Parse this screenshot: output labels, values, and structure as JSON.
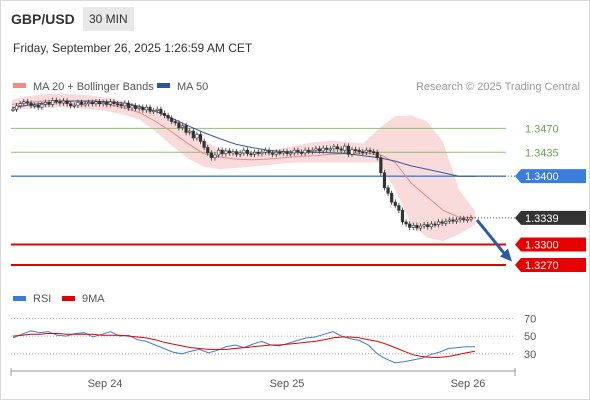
{
  "header": {
    "pair": "GBP/USD",
    "timeframe": "30 MIN",
    "date": "Friday, September 26, 2025 1:26:59 AM CET"
  },
  "colors": {
    "bollinger": "#f2a1a1",
    "ma20": "#e88a8a",
    "ma50": "#3a5a9a",
    "resistance": "#8dc26e",
    "pivot": "#3b7ddd",
    "support": "#e60000",
    "current": "#333333",
    "arrow": "#2b5aa6",
    "rsi": "#3b7ddd",
    "rsi_ma": "#e60000"
  },
  "chart_data": [
    {
      "type": "line",
      "title": "",
      "legend": {
        "placement": "top-left",
        "items": [
          {
            "label": "MA 20 + Bollinger Bands",
            "color": "#f28b82"
          },
          {
            "label": "MA 50",
            "color": "#2f5597"
          }
        ]
      },
      "credit": "Research © 2025 Trading Central",
      "x_labels": [
        "Sep 24",
        "Sep 25",
        "Sep 26"
      ],
      "y_range": [
        1.3248,
        1.3532
      ],
      "series": [
        {
          "name": "MA 20 + Bollinger Bands",
          "style": "line",
          "values": [
            1.3505,
            1.3508,
            1.351,
            1.3511,
            1.351,
            1.3508,
            1.3505,
            1.35,
            1.3493,
            1.348,
            1.3465,
            1.3448,
            1.3433,
            1.3428,
            1.3425,
            1.3424,
            1.3425,
            1.3427,
            1.3429,
            1.343,
            1.3432,
            1.3433,
            1.3433,
            1.3432,
            1.342,
            1.339,
            1.337,
            1.335,
            1.334,
            1.3339
          ]
        },
        {
          "name": "MA 50",
          "style": "line",
          "values": [
            1.35,
            1.3504,
            1.3507,
            1.3509,
            1.351,
            1.351,
            1.3509,
            1.3507,
            1.3502,
            1.3495,
            1.3485,
            1.3474,
            1.3464,
            1.3455,
            1.3447,
            1.3442,
            1.3438,
            1.3436,
            1.3435,
            1.3435,
            1.3434,
            1.3433,
            1.343,
            1.3427,
            1.3422,
            1.3415,
            1.341,
            1.3405,
            1.34,
            1.34
          ]
        },
        {
          "name": "Upper Bollinger",
          "style": "band",
          "values": [
            1.3512,
            1.3517,
            1.352,
            1.3521,
            1.352,
            1.3518,
            1.3515,
            1.351,
            1.3503,
            1.3495,
            1.3485,
            1.347,
            1.3452,
            1.344,
            1.3436,
            1.3436,
            1.3438,
            1.3441,
            1.3446,
            1.345,
            1.3452,
            1.345,
            1.3448,
            1.347,
            1.3488,
            1.3489,
            1.348,
            1.345,
            1.338,
            1.3349
          ]
        },
        {
          "name": "Lower Bollinger",
          "style": "band",
          "values": [
            1.3496,
            1.3499,
            1.35,
            1.3501,
            1.35,
            1.3498,
            1.3495,
            1.349,
            1.3483,
            1.3465,
            1.3445,
            1.3426,
            1.3414,
            1.341,
            1.3412,
            1.3414,
            1.3416,
            1.3419,
            1.342,
            1.342,
            1.342,
            1.342,
            1.342,
            1.342,
            1.338,
            1.333,
            1.331,
            1.3305,
            1.3315,
            1.3329
          ]
        }
      ],
      "price": {
        "x_start": 1,
        "values": [
          1.3498,
          1.3503,
          1.3506,
          1.3509,
          1.3507,
          1.3503,
          1.3504,
          1.3501,
          1.3505,
          1.3508,
          1.3505,
          1.3511,
          1.3509,
          1.3507,
          1.351,
          1.3506,
          1.3503,
          1.3504,
          1.3508,
          1.3505,
          1.3506,
          1.3508,
          1.3506,
          1.3509,
          1.3506,
          1.3508,
          1.3505,
          1.3509,
          1.3506,
          1.3505,
          1.3503,
          1.3507,
          1.35,
          1.3503,
          1.3499,
          1.3501,
          1.3497,
          1.3501,
          1.3495,
          1.3496,
          1.3498,
          1.3492,
          1.3489,
          1.3485,
          1.348,
          1.3478,
          1.3471,
          1.3474,
          1.3464,
          1.3466,
          1.3456,
          1.3461,
          1.3451,
          1.3442,
          1.3434,
          1.3427,
          1.3431,
          1.3438,
          1.3433,
          1.3437,
          1.3434,
          1.3436,
          1.3432,
          1.3434,
          1.3438,
          1.3433,
          1.3432,
          1.3435,
          1.3433,
          1.3435,
          1.3438,
          1.3434,
          1.3432,
          1.3435,
          1.3434,
          1.3436,
          1.3433,
          1.3434,
          1.3438,
          1.3435,
          1.3434,
          1.3438,
          1.3436,
          1.3438,
          1.344,
          1.3437,
          1.3441,
          1.3439,
          1.344,
          1.3443,
          1.344,
          1.3438,
          1.3444,
          1.3432,
          1.3439,
          1.3438,
          1.3436,
          1.3435,
          1.3438,
          1.3436,
          1.3435,
          1.3427,
          1.3405,
          1.3383,
          1.3375,
          1.3362,
          1.3357,
          1.335,
          1.3333,
          1.333,
          1.3325,
          1.3328,
          1.3324,
          1.3327,
          1.3329,
          1.3326,
          1.333,
          1.3329,
          1.3333,
          1.3331,
          1.3334,
          1.3336,
          1.3334,
          1.3336,
          1.3338,
          1.3336,
          1.3337,
          1.3339
        ]
      },
      "levels": [
        {
          "value": 1.347,
          "label": "1.3470",
          "kind": "resistance",
          "style": "text"
        },
        {
          "value": 1.3435,
          "label": "1.3435",
          "kind": "resistance",
          "style": "text"
        },
        {
          "value": 1.34,
          "label": "1.3400",
          "kind": "pivot",
          "style": "tag"
        },
        {
          "value": 1.3339,
          "label": "1.3339",
          "kind": "current",
          "style": "tag"
        },
        {
          "value": 1.33,
          "label": "1.3300",
          "kind": "support",
          "style": "tag"
        },
        {
          "value": 1.327,
          "label": "1.3270",
          "kind": "support",
          "style": "tag"
        }
      ],
      "projection": {
        "from": 1.3336,
        "to": 1.3275,
        "direction": "down"
      }
    },
    {
      "type": "line",
      "title": "",
      "legend": {
        "placement": "top-left",
        "items": [
          {
            "label": "RSI",
            "color": "#3b7ddd"
          },
          {
            "label": "9MA",
            "color": "#e60000"
          }
        ]
      },
      "y_ticks": [
        70,
        50,
        30
      ],
      "y_range": [
        14,
        84
      ],
      "series": [
        {
          "name": "RSI",
          "values": [
            48,
            52,
            56,
            54,
            55,
            51,
            50,
            53,
            54,
            49,
            52,
            55,
            50,
            51,
            46,
            44,
            40,
            36,
            32,
            30,
            33,
            35,
            31,
            34,
            38,
            40,
            37,
            41,
            44,
            40,
            39,
            42,
            45,
            48,
            49,
            52,
            55,
            50,
            47,
            45,
            40,
            30,
            24,
            20,
            21,
            23,
            25,
            29,
            32,
            36,
            37,
            38,
            38
          ]
        },
        {
          "name": "9MA",
          "values": [
            50,
            51,
            52,
            52,
            53,
            53,
            52,
            52,
            52,
            52,
            51,
            51,
            51,
            50,
            49,
            48,
            46,
            43,
            41,
            39,
            37,
            36,
            35,
            35,
            35,
            36,
            37,
            38,
            39,
            40,
            40,
            41,
            42,
            43,
            44,
            46,
            48,
            49,
            49,
            48,
            46,
            44,
            41,
            37,
            33,
            29,
            27,
            26,
            26,
            27,
            29,
            31,
            33
          ]
        }
      ]
    }
  ]
}
